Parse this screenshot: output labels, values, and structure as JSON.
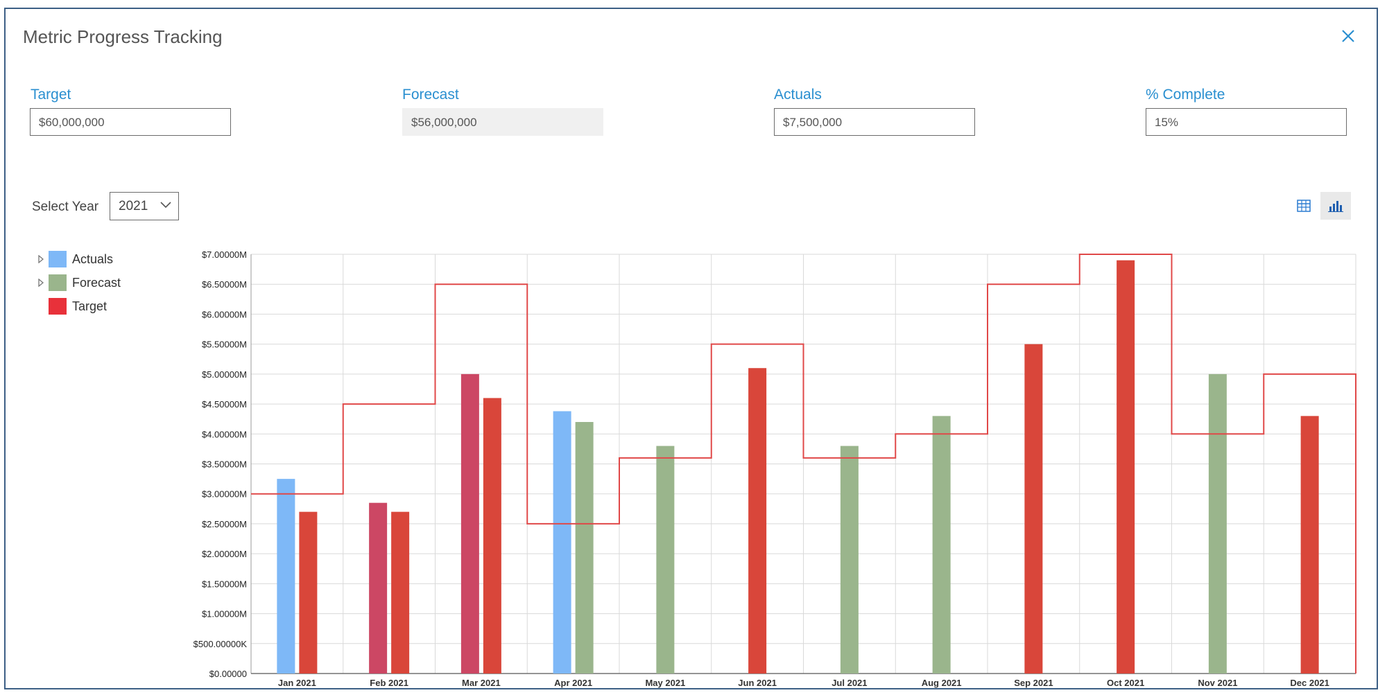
{
  "header": {
    "title": "Metric Progress Tracking",
    "close_icon": "close-icon"
  },
  "fields": {
    "target": {
      "label": "Target",
      "value": "$60,000,000"
    },
    "forecast": {
      "label": "Forecast",
      "value": "$56,000,000"
    },
    "actuals": {
      "label": "Actuals",
      "value": "$7,500,000"
    },
    "complete": {
      "label": "% Complete",
      "value": "15%"
    }
  },
  "controls": {
    "year_label": "Select Year",
    "year_value": "2021",
    "table_view_icon": "table-icon",
    "chart_view_icon": "bar-chart-icon"
  },
  "colors": {
    "actuals": "#7eb8f7",
    "forecast": "#9ab58c",
    "target": "#d9463a",
    "overlap": "#cc4764",
    "accent": "#2a8fd0"
  },
  "chart_data": {
    "type": "bar",
    "categories": [
      "Jan 2021",
      "Feb 2021",
      "Mar 2021",
      "Apr 2021",
      "May 2021",
      "Jun 2021",
      "Jul 2021",
      "Aug 2021",
      "Sep 2021",
      "Oct 2021",
      "Nov 2021",
      "Dec 2021"
    ],
    "legend": [
      "Actuals",
      "Forecast",
      "Target"
    ],
    "ylim": [
      0,
      7000000
    ],
    "yticks": [
      "$0.00000",
      "$500.00000K",
      "$1.00000M",
      "$1.50000M",
      "$2.00000M",
      "$2.50000M",
      "$3.00000M",
      "$3.50000M",
      "$4.00000M",
      "$4.50000M",
      "$5.00000M",
      "$5.50000M",
      "$6.00000M",
      "$6.50000M",
      "$7.00000M"
    ],
    "grid": true,
    "target_step_line": [
      3000000,
      4500000,
      6500000,
      2500000,
      3600000,
      5500000,
      3600000,
      4000000,
      6500000,
      7000000,
      4000000,
      5000000
    ],
    "bars": [
      {
        "category": "Jan 2021",
        "kind": "actuals",
        "value": 3250000
      },
      {
        "category": "Jan 2021",
        "kind": "target",
        "value": 2700000
      },
      {
        "category": "Feb 2021",
        "kind": "overlap",
        "value": 2850000
      },
      {
        "category": "Feb 2021",
        "kind": "target",
        "value": 2700000
      },
      {
        "category": "Mar 2021",
        "kind": "overlap",
        "value": 5000000
      },
      {
        "category": "Mar 2021",
        "kind": "target",
        "value": 4600000
      },
      {
        "category": "Apr 2021",
        "kind": "actuals",
        "value": 4380000
      },
      {
        "category": "Apr 2021",
        "kind": "forecast",
        "value": 4200000
      },
      {
        "category": "May 2021",
        "kind": "forecast",
        "value": 3800000
      },
      {
        "category": "Jun 2021",
        "kind": "target",
        "value": 5100000
      },
      {
        "category": "Jul 2021",
        "kind": "forecast",
        "value": 3800000
      },
      {
        "category": "Aug 2021",
        "kind": "forecast",
        "value": 4300000
      },
      {
        "category": "Sep 2021",
        "kind": "target",
        "value": 5500000
      },
      {
        "category": "Oct 2021",
        "kind": "target",
        "value": 6900000
      },
      {
        "category": "Nov 2021",
        "kind": "forecast",
        "value": 5000000
      },
      {
        "category": "Dec 2021",
        "kind": "target",
        "value": 4300000
      }
    ]
  }
}
